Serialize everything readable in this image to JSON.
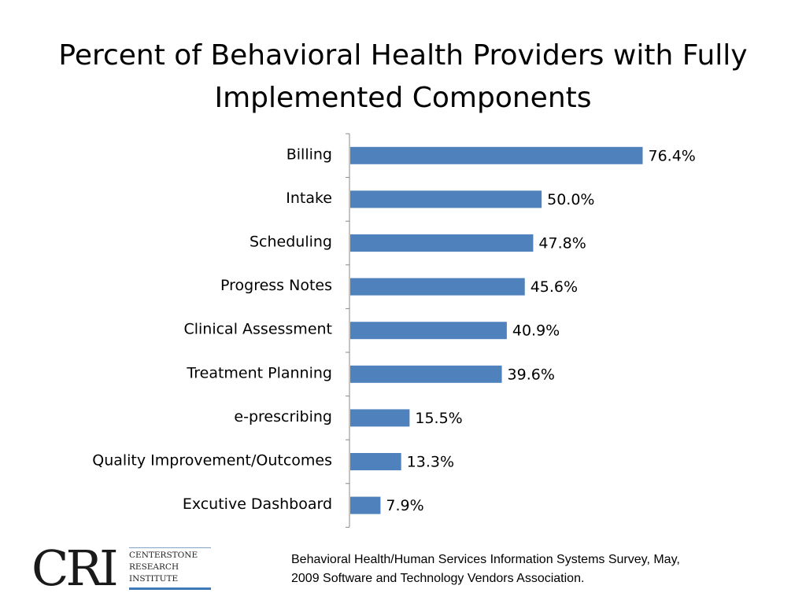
{
  "title_lines": [
    "Percent of Behavioral Health Providers with Fully",
    "Implemented Components"
  ],
  "chart_data": {
    "type": "bar",
    "orientation": "horizontal",
    "title": "Percent of Behavioral Health Providers with Fully Implemented Components",
    "categories": [
      "Billing",
      "Intake",
      "Scheduling",
      "Progress Notes",
      "Clinical Assessment",
      "Treatment Planning",
      "e-prescribing",
      "Quality Improvement/Outcomes",
      "Excutive Dashboard"
    ],
    "values": [
      76.4,
      50.0,
      47.8,
      45.6,
      40.9,
      39.6,
      15.5,
      13.3,
      7.9
    ],
    "data_labels": [
      "76.4%",
      "50.0%",
      "47.8%",
      "45.6%",
      "40.9%",
      "39.6%",
      "15.5%",
      "13.3%",
      "7.9%"
    ],
    "unit": "%",
    "xlim": [
      0,
      100
    ],
    "grid": false,
    "bar_color": "#4f81bd"
  },
  "logo": {
    "letters": "CRI",
    "name_lines": [
      "CENTERSTONE",
      "RESEARCH",
      "INSTITUTE"
    ]
  },
  "source_lines": [
    "Behavioral Health/Human Services Information Systems Survey, May,",
    "2009 Software and Technology Vendors Association."
  ]
}
